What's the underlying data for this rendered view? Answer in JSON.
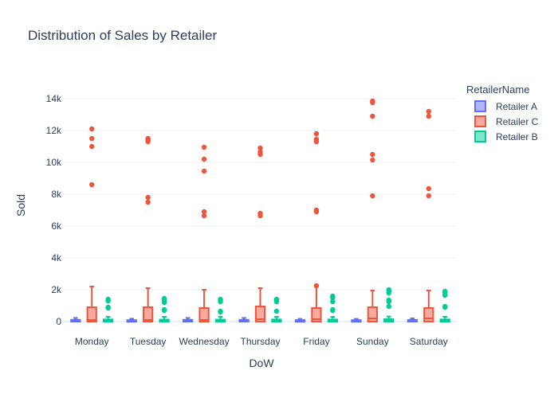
{
  "chart_data": {
    "type": "box",
    "title": "Distribution of Sales by Retailer",
    "xlabel": "DoW",
    "ylabel": "Sold",
    "categories": [
      "Monday",
      "Tuesday",
      "Wednesday",
      "Thursday",
      "Friday",
      "Sunday",
      "Saturday"
    ],
    "ylim": [
      -700,
      15200
    ],
    "yticks": [
      0,
      2000,
      4000,
      6000,
      8000,
      10000,
      12000,
      14000
    ],
    "ytick_labels": [
      "0",
      "2k",
      "4k",
      "6k",
      "8k",
      "10k",
      "12k",
      "14k"
    ],
    "grid": true,
    "legend": {
      "title": "RetailerName",
      "placement": "top-right"
    },
    "series": [
      {
        "name": "Retailer A",
        "color": "#636efa",
        "boxes": [
          {
            "q1": 0,
            "median": 40,
            "q3": 110,
            "lower": 0,
            "upper": 230,
            "outliers": []
          },
          {
            "q1": 0,
            "median": 30,
            "q3": 90,
            "lower": 0,
            "upper": 180,
            "outliers": []
          },
          {
            "q1": 0,
            "median": 40,
            "q3": 110,
            "lower": 0,
            "upper": 230,
            "outliers": []
          },
          {
            "q1": 0,
            "median": 40,
            "q3": 110,
            "lower": 0,
            "upper": 230,
            "outliers": []
          },
          {
            "q1": 0,
            "median": 30,
            "q3": 90,
            "lower": 0,
            "upper": 170,
            "outliers": []
          },
          {
            "q1": 0,
            "median": 30,
            "q3": 90,
            "lower": 0,
            "upper": 170,
            "outliers": []
          },
          {
            "q1": 0,
            "median": 40,
            "q3": 100,
            "lower": 0,
            "upper": 200,
            "outliers": []
          }
        ]
      },
      {
        "name": "Retailer C",
        "color": "#ef553b",
        "boxes": [
          {
            "q1": 0,
            "median": 100,
            "q3": 900,
            "lower": 0,
            "upper": 2200,
            "outliers": [
              8600,
              11000,
              11500,
              12100
            ]
          },
          {
            "q1": 0,
            "median": 100,
            "q3": 900,
            "lower": 0,
            "upper": 2100,
            "outliers": [
              7500,
              7800,
              11300,
              11400,
              11500
            ]
          },
          {
            "q1": 0,
            "median": 100,
            "q3": 850,
            "lower": 0,
            "upper": 2000,
            "outliers": [
              6650,
              6900,
              9450,
              10200,
              10950
            ]
          },
          {
            "q1": 0,
            "median": 150,
            "q3": 950,
            "lower": 0,
            "upper": 2100,
            "outliers": [
              6650,
              6800,
              10500,
              10650,
              10900
            ]
          },
          {
            "q1": 0,
            "median": 150,
            "q3": 850,
            "lower": 0,
            "upper": 2200,
            "outliers": [
              2250,
              6900,
              7000,
              11300,
              11450,
              11800
            ]
          },
          {
            "q1": 0,
            "median": 200,
            "q3": 900,
            "lower": 0,
            "upper": 1950,
            "outliers": [
              7900,
              10150,
              10500,
              12900,
              13750,
              13850
            ]
          },
          {
            "q1": 0,
            "median": 200,
            "q3": 850,
            "lower": 0,
            "upper": 1950,
            "outliers": [
              7900,
              8350,
              12900,
              13200
            ]
          }
        ]
      },
      {
        "name": "Retailer B",
        "color": "#00cc96",
        "boxes": [
          {
            "q1": 0,
            "median": 40,
            "q3": 130,
            "lower": 0,
            "upper": 300,
            "outliers": [
              850,
              900,
              1300,
              1400
            ]
          },
          {
            "q1": 0,
            "median": 40,
            "q3": 120,
            "lower": 0,
            "upper": 300,
            "outliers": [
              700,
              750,
              1200,
              1350,
              1450
            ]
          },
          {
            "q1": 0,
            "median": 40,
            "q3": 120,
            "lower": 0,
            "upper": 300,
            "outliers": [
              600,
              650,
              1250,
              1350,
              1400
            ]
          },
          {
            "q1": 0,
            "median": 40,
            "q3": 130,
            "lower": 0,
            "upper": 300,
            "outliers": [
              650,
              1250,
              1350,
              1400
            ]
          },
          {
            "q1": 0,
            "median": 40,
            "q3": 130,
            "lower": 0,
            "upper": 300,
            "outliers": [
              700,
              750,
              1250,
              1500,
              1600
            ]
          },
          {
            "q1": 0,
            "median": 50,
            "q3": 150,
            "lower": 0,
            "upper": 320,
            "outliers": [
              950,
              1250,
              1350,
              1800,
              1900,
              2000
            ]
          },
          {
            "q1": 0,
            "median": 40,
            "q3": 130,
            "lower": 0,
            "upper": 300,
            "outliers": [
              900,
              950,
              1650,
              1800,
              1900
            ]
          }
        ]
      }
    ]
  }
}
